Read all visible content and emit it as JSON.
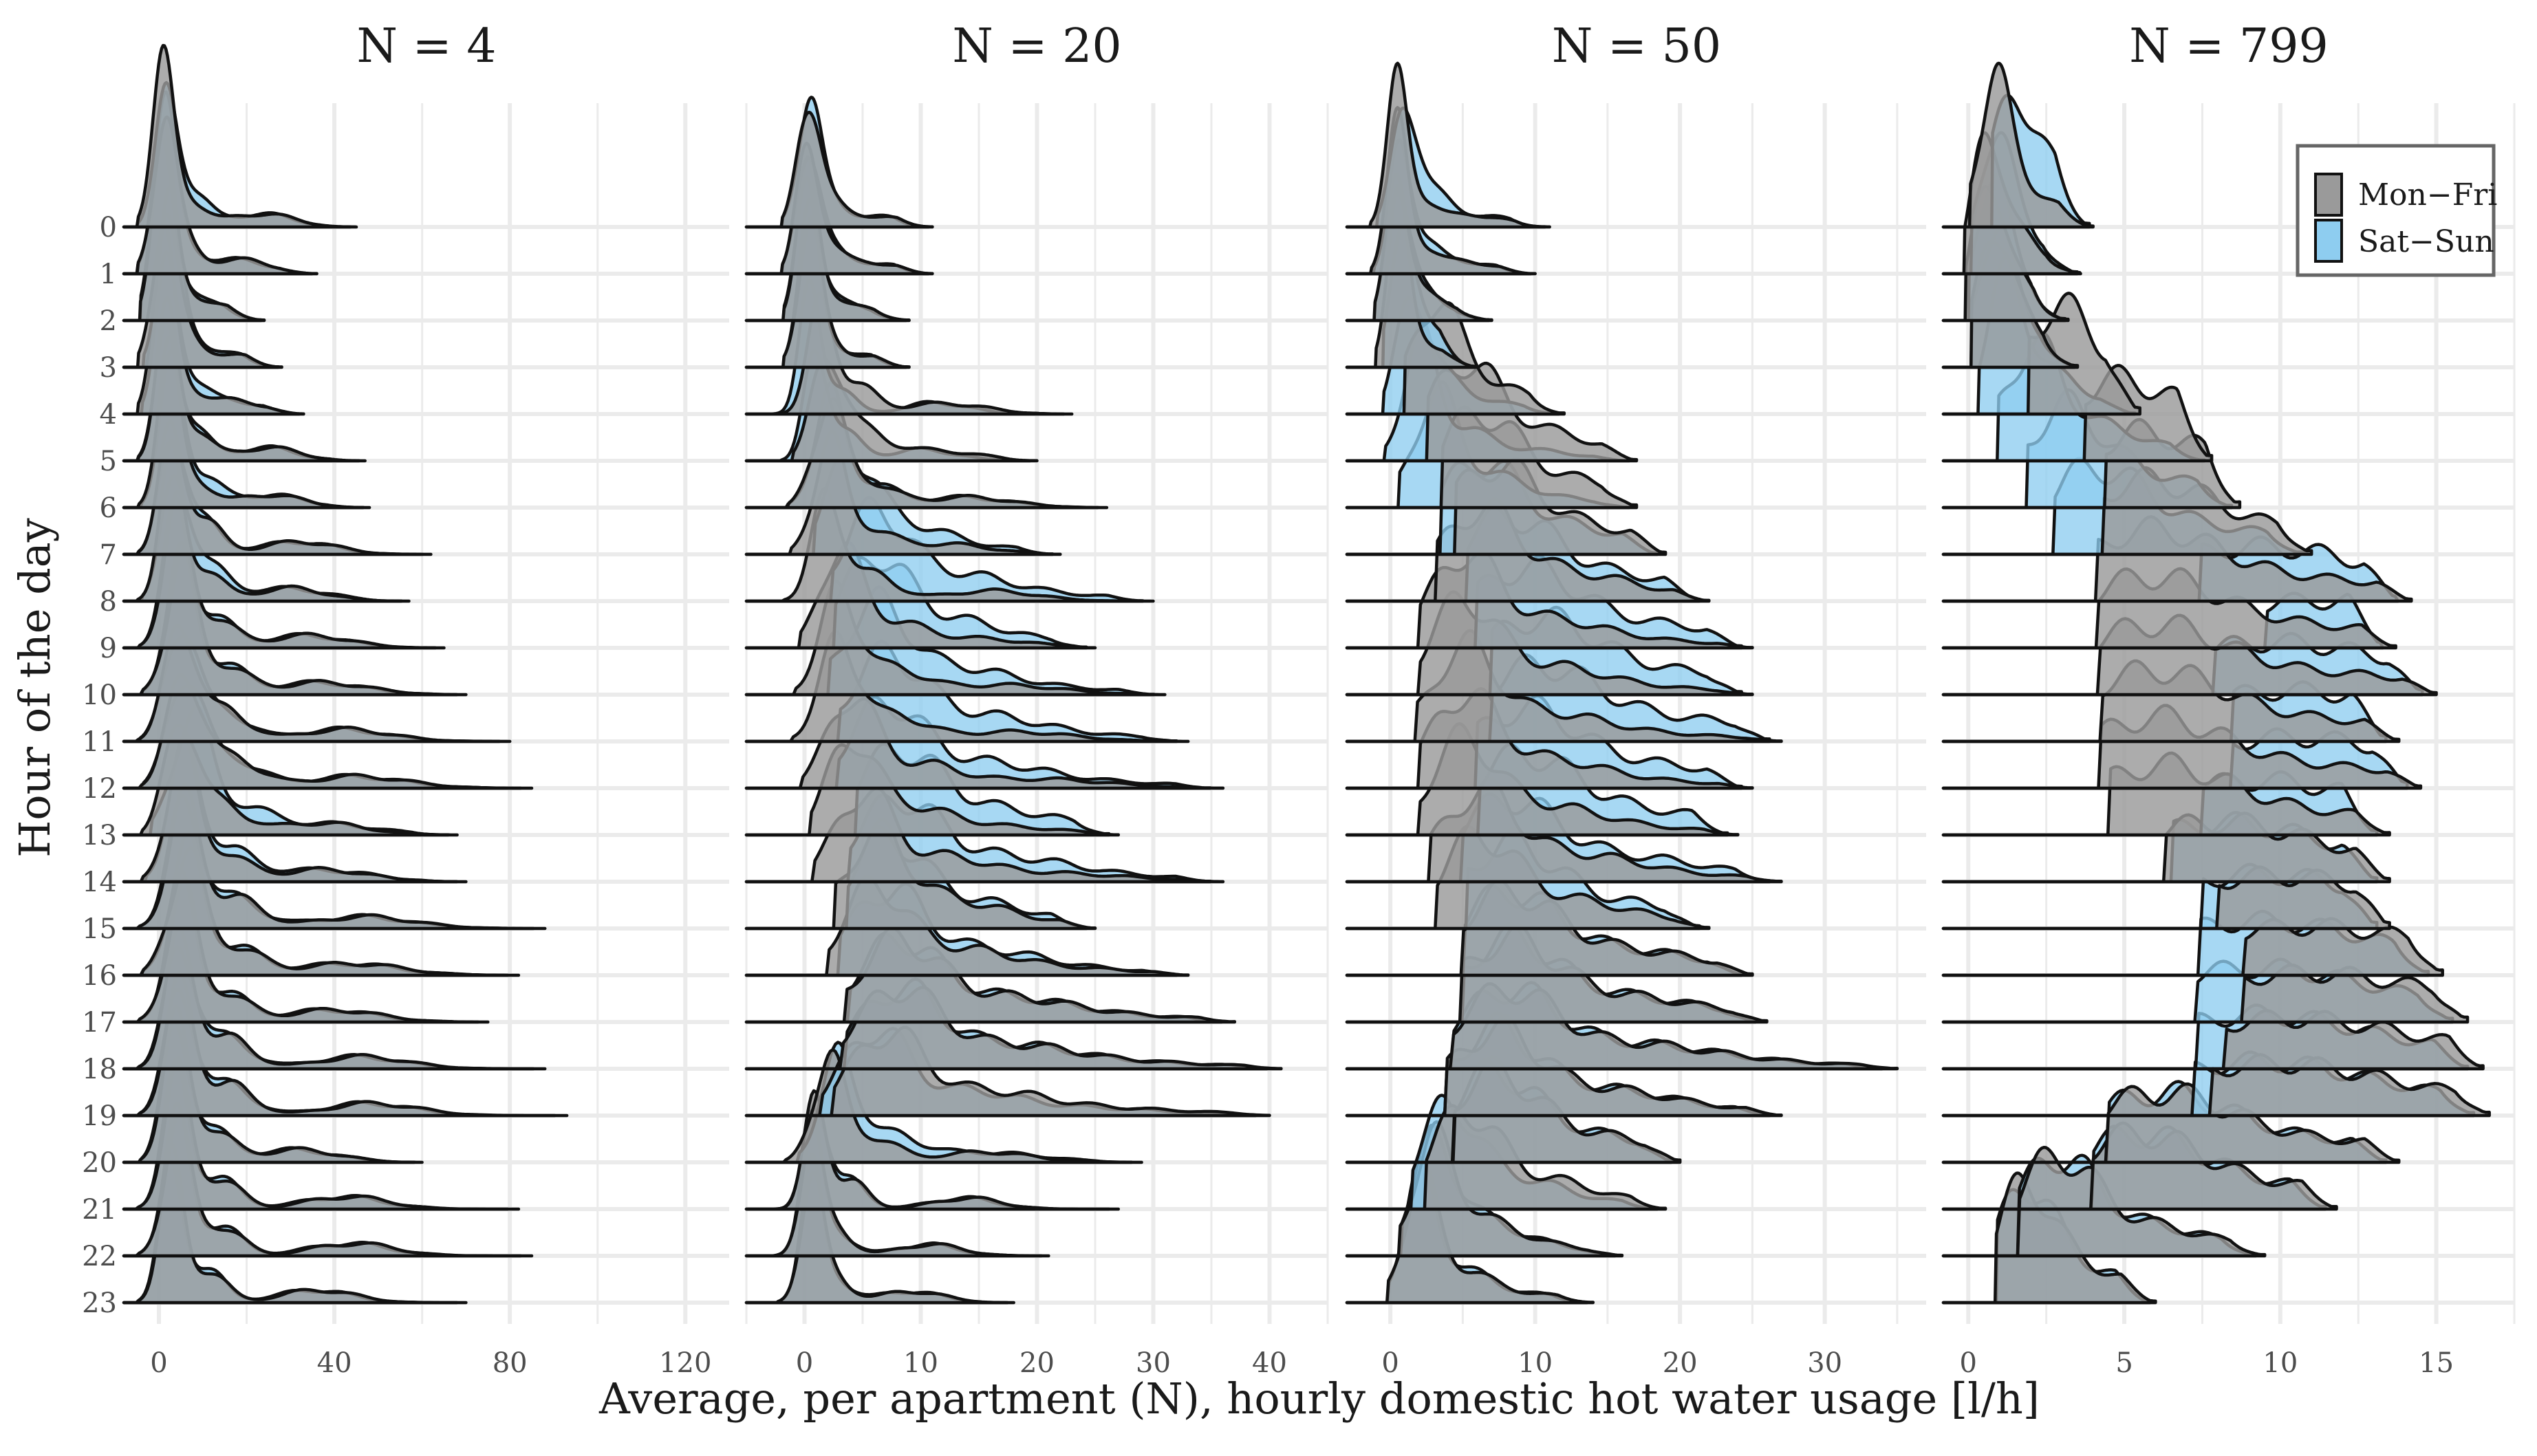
{
  "chart_data": {
    "type": "ridgeline",
    "title": "",
    "xlabel": "Average, per apartment (N), hourly domestic hot water usage [l/h]",
    "ylabel": "Hour of the day",
    "hours": [
      "0",
      "1",
      "2",
      "3",
      "4",
      "5",
      "6",
      "7",
      "8",
      "9",
      "10",
      "11",
      "12",
      "13",
      "14",
      "15",
      "16",
      "17",
      "18",
      "19",
      "20",
      "21",
      "22",
      "23"
    ],
    "legend": {
      "placement": "top-right",
      "entries": [
        {
          "label": "Mon−Fri",
          "color": "#9a9a9a"
        },
        {
          "label": "Sat−Sun",
          "color": "#8ecdf0"
        }
      ]
    },
    "colors": {
      "weekday": "#9a9a9a",
      "weekend": "#8ecdf0",
      "overlap": "#7fb0cc",
      "outline": "#111111",
      "grid": "#ebebeb"
    },
    "panels": [
      {
        "title": "N = 4",
        "xlim": [
          -8,
          130
        ],
        "xticks": [
          0,
          40,
          80,
          120
        ],
        "xtick_labels": [
          "0",
          "40",
          "80",
          "120"
        ],
        "weekday_peak": [
          1,
          1,
          1,
          1,
          1,
          2,
          2,
          3,
          3,
          4,
          5,
          5,
          6,
          5,
          5,
          6,
          6,
          5,
          5,
          5,
          4,
          4,
          4,
          3
        ],
        "weekend_peak": [
          2,
          1,
          1,
          2,
          2,
          2,
          3,
          3,
          4,
          4,
          5,
          5,
          6,
          7,
          6,
          6,
          6,
          5,
          5,
          5,
          4,
          4,
          4,
          3
        ],
        "tail_end": [
          45,
          36,
          24,
          28,
          33,
          47,
          48,
          62,
          57,
          65,
          70,
          80,
          85,
          68,
          70,
          88,
          82,
          75,
          88,
          93,
          60,
          82,
          85,
          70
        ]
      },
      {
        "title": "N = 20",
        "xlim": [
          -5,
          45
        ],
        "xticks": [
          0,
          10,
          20,
          30,
          40
        ],
        "xtick_labels": [
          "0",
          "10",
          "20",
          "30",
          "40"
        ],
        "weekday_peak": [
          0.3,
          0.3,
          0.3,
          0.3,
          1.5,
          2,
          2,
          2,
          2,
          3,
          3,
          3,
          4,
          4,
          5,
          6,
          6,
          8,
          8,
          7,
          2,
          1,
          0.5,
          0.5
        ],
        "weekend_peak": [
          0.3,
          0.3,
          0.3,
          0.3,
          0.5,
          1,
          2,
          4,
          6,
          6,
          6,
          7,
          7,
          8,
          8,
          7,
          7,
          8,
          8,
          6,
          3,
          1,
          0.5,
          0.5
        ],
        "tail_end": [
          11,
          11,
          9,
          9,
          23,
          20,
          26,
          22,
          30,
          25,
          31,
          33,
          36,
          27,
          36,
          25,
          33,
          37,
          41,
          40,
          29,
          27,
          21,
          18
        ]
      },
      {
        "title": "N = 50",
        "xlim": [
          -3,
          37
        ],
        "xticks": [
          0,
          10,
          20,
          30
        ],
        "xtick_labels": [
          "0",
          "10",
          "20",
          "30"
        ],
        "weekday_peak": [
          0.5,
          0.5,
          0.5,
          0.5,
          3,
          5,
          6,
          7,
          6,
          5,
          5,
          5,
          5,
          5,
          6,
          6,
          8,
          8,
          8,
          7,
          7,
          5,
          3,
          2
        ],
        "weekend_peak": [
          1,
          0.7,
          0.5,
          1,
          1.5,
          2,
          3,
          6,
          8,
          9,
          10,
          10,
          9,
          9,
          8,
          8,
          8,
          8,
          8,
          7,
          7,
          4,
          3,
          2
        ],
        "tail_end": [
          11,
          10,
          7,
          6,
          12,
          17,
          17,
          19,
          22,
          25,
          25,
          27,
          25,
          24,
          27,
          22,
          25,
          26,
          35,
          27,
          20,
          19,
          16,
          14
        ]
      },
      {
        "title": "N = 799",
        "xlim": [
          -0.8,
          17.5
        ],
        "xticks": [
          0,
          5,
          10,
          15
        ],
        "xtick_labels": [
          "0",
          "5",
          "10",
          "15"
        ],
        "weekday_peak": [
          0.8,
          0.6,
          0.6,
          0.8,
          2.8,
          4.8,
          5.5,
          5.6,
          5.7,
          5.7,
          5.8,
          5.8,
          5.8,
          6,
          7.8,
          9.5,
          10.5,
          10.5,
          10,
          9.5,
          6,
          5.3,
          2.8,
          1.8
        ],
        "weekend_peak": [
          1.5,
          0.8,
          0.7,
          0.8,
          1.2,
          2,
          3,
          4,
          9,
          11,
          9.5,
          10,
          10,
          9,
          8,
          9,
          9,
          9,
          9,
          9,
          6,
          5.3,
          2.8,
          1.8
        ],
        "tail_end": [
          4,
          3.6,
          3.2,
          3.5,
          5.5,
          7.8,
          8.7,
          11,
          14.2,
          13.7,
          15,
          13.8,
          14.5,
          13.5,
          13.5,
          13.5,
          15.2,
          16,
          16.5,
          16.7,
          13.8,
          11.8,
          9.5,
          6
        ]
      }
    ]
  }
}
